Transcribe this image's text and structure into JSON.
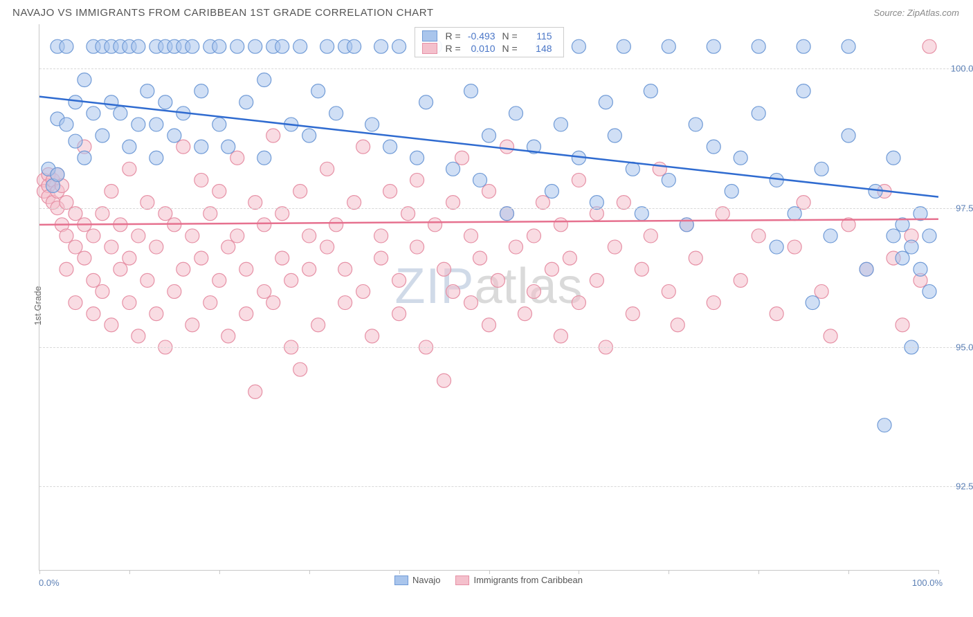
{
  "header": {
    "title": "NAVAJO VS IMMIGRANTS FROM CARIBBEAN 1ST GRADE CORRELATION CHART",
    "source_prefix": "Source: ",
    "source": "ZipAtlas.com"
  },
  "watermark": {
    "part1": "ZIP",
    "part2": "atlas"
  },
  "axes": {
    "ylabel": "1st Grade",
    "x_min_label": "0.0%",
    "x_max_label": "100.0%",
    "x_range": [
      0,
      100
    ],
    "y_range": [
      91.0,
      100.8
    ],
    "y_gridlines": [
      92.5,
      95.0,
      97.5,
      100.0
    ],
    "y_tick_labels": [
      "92.5%",
      "95.0%",
      "97.5%",
      "100.0%"
    ],
    "x_ticks": [
      0,
      10,
      20,
      30,
      40,
      50,
      60,
      70,
      80,
      90,
      100
    ],
    "grid_color": "#d8d8d8",
    "axis_color": "#c8c8c8",
    "tick_label_color": "#5b7fb5"
  },
  "series": {
    "navajo": {
      "label": "Navajo",
      "color_fill": "#a9c5ec",
      "color_stroke": "#6f9ad6",
      "line_color": "#2f6bd0",
      "marker_radius": 10,
      "fill_opacity": 0.55,
      "corr_R": "-0.493",
      "corr_N": "115",
      "regression": {
        "x1": 0,
        "y1": 99.5,
        "x2": 100,
        "y2": 97.7
      },
      "points": [
        [
          1,
          98.2
        ],
        [
          1.5,
          97.9
        ],
        [
          2,
          98.1
        ],
        [
          2,
          99.1
        ],
        [
          2,
          100.4
        ],
        [
          3,
          99.0
        ],
        [
          3,
          100.4
        ],
        [
          4,
          98.7
        ],
        [
          4,
          99.4
        ],
        [
          5,
          98.4
        ],
        [
          5,
          99.8
        ],
        [
          6,
          99.2
        ],
        [
          6,
          100.4
        ],
        [
          7,
          100.4
        ],
        [
          7,
          98.8
        ],
        [
          8,
          99.4
        ],
        [
          8,
          100.4
        ],
        [
          9,
          99.2
        ],
        [
          9,
          100.4
        ],
        [
          10,
          98.6
        ],
        [
          10,
          100.4
        ],
        [
          11,
          99.0
        ],
        [
          11,
          100.4
        ],
        [
          12,
          99.6
        ],
        [
          13,
          100.4
        ],
        [
          13,
          99.0
        ],
        [
          13,
          98.4
        ],
        [
          14,
          100.4
        ],
        [
          14,
          99.4
        ],
        [
          15,
          100.4
        ],
        [
          15,
          98.8
        ],
        [
          16,
          99.2
        ],
        [
          16,
          100.4
        ],
        [
          17,
          100.4
        ],
        [
          18,
          98.6
        ],
        [
          18,
          99.6
        ],
        [
          19,
          100.4
        ],
        [
          20,
          99.0
        ],
        [
          20,
          100.4
        ],
        [
          21,
          98.6
        ],
        [
          22,
          100.4
        ],
        [
          23,
          99.4
        ],
        [
          24,
          100.4
        ],
        [
          25,
          98.4
        ],
        [
          25,
          99.8
        ],
        [
          26,
          100.4
        ],
        [
          27,
          100.4
        ],
        [
          28,
          99.0
        ],
        [
          29,
          100.4
        ],
        [
          30,
          98.8
        ],
        [
          31,
          99.6
        ],
        [
          32,
          100.4
        ],
        [
          33,
          99.2
        ],
        [
          34,
          100.4
        ],
        [
          35,
          100.4
        ],
        [
          37,
          99.0
        ],
        [
          38,
          100.4
        ],
        [
          39,
          98.6
        ],
        [
          40,
          100.4
        ],
        [
          42,
          98.4
        ],
        [
          43,
          99.4
        ],
        [
          44,
          100.4
        ],
        [
          46,
          98.2
        ],
        [
          48,
          99.6
        ],
        [
          49,
          100.4
        ],
        [
          49,
          98.0
        ],
        [
          50,
          98.8
        ],
        [
          52,
          97.4
        ],
        [
          53,
          99.2
        ],
        [
          55,
          98.6
        ],
        [
          56,
          100.4
        ],
        [
          57,
          97.8
        ],
        [
          58,
          99.0
        ],
        [
          60,
          98.4
        ],
        [
          60,
          100.4
        ],
        [
          62,
          97.6
        ],
        [
          63,
          99.4
        ],
        [
          64,
          98.8
        ],
        [
          65,
          100.4
        ],
        [
          66,
          98.2
        ],
        [
          67,
          97.4
        ],
        [
          68,
          99.6
        ],
        [
          70,
          98.0
        ],
        [
          70,
          100.4
        ],
        [
          72,
          97.2
        ],
        [
          73,
          99.0
        ],
        [
          75,
          98.6
        ],
        [
          75,
          100.4
        ],
        [
          77,
          97.8
        ],
        [
          78,
          98.4
        ],
        [
          80,
          99.2
        ],
        [
          80,
          100.4
        ],
        [
          82,
          96.8
        ],
        [
          82,
          98.0
        ],
        [
          84,
          97.4
        ],
        [
          85,
          99.6
        ],
        [
          85,
          100.4
        ],
        [
          86,
          95.8
        ],
        [
          87,
          98.2
        ],
        [
          88,
          97.0
        ],
        [
          90,
          98.8
        ],
        [
          90,
          100.4
        ],
        [
          92,
          96.4
        ],
        [
          93,
          97.8
        ],
        [
          94,
          93.6
        ],
        [
          95,
          98.4
        ],
        [
          95,
          97.0
        ],
        [
          96,
          96.6
        ],
        [
          96,
          97.2
        ],
        [
          97,
          95.0
        ],
        [
          97,
          96.8
        ],
        [
          98,
          97.4
        ],
        [
          98,
          96.4
        ],
        [
          99,
          97.0
        ],
        [
          99,
          96.0
        ]
      ]
    },
    "caribbean": {
      "label": "Immigrants from Caribbean",
      "color_fill": "#f4c0cc",
      "color_stroke": "#e690a5",
      "line_color": "#e6718f",
      "marker_radius": 10,
      "fill_opacity": 0.55,
      "corr_R": "0.010",
      "corr_N": "148",
      "regression": {
        "x1": 0,
        "y1": 97.2,
        "x2": 100,
        "y2": 97.3
      },
      "points": [
        [
          0.5,
          98.0
        ],
        [
          0.5,
          97.8
        ],
        [
          1,
          98.1
        ],
        [
          1,
          97.9
        ],
        [
          1,
          97.7
        ],
        [
          1.5,
          98.0
        ],
        [
          1.5,
          97.6
        ],
        [
          2,
          98.1
        ],
        [
          2,
          97.5
        ],
        [
          2,
          97.8
        ],
        [
          2.5,
          97.2
        ],
        [
          2.5,
          97.9
        ],
        [
          3,
          97.0
        ],
        [
          3,
          97.6
        ],
        [
          3,
          96.4
        ],
        [
          4,
          97.4
        ],
        [
          4,
          96.8
        ],
        [
          4,
          95.8
        ],
        [
          5,
          97.2
        ],
        [
          5,
          96.6
        ],
        [
          5,
          98.6
        ],
        [
          6,
          96.2
        ],
        [
          6,
          97.0
        ],
        [
          6,
          95.6
        ],
        [
          7,
          97.4
        ],
        [
          7,
          96.0
        ],
        [
          8,
          96.8
        ],
        [
          8,
          95.4
        ],
        [
          8,
          97.8
        ],
        [
          9,
          96.4
        ],
        [
          9,
          97.2
        ],
        [
          10,
          95.8
        ],
        [
          10,
          96.6
        ],
        [
          10,
          98.2
        ],
        [
          11,
          95.2
        ],
        [
          11,
          97.0
        ],
        [
          12,
          96.2
        ],
        [
          12,
          97.6
        ],
        [
          13,
          95.6
        ],
        [
          13,
          96.8
        ],
        [
          14,
          97.4
        ],
        [
          14,
          95.0
        ],
        [
          15,
          96.0
        ],
        [
          15,
          97.2
        ],
        [
          16,
          98.6
        ],
        [
          16,
          96.4
        ],
        [
          17,
          95.4
        ],
        [
          17,
          97.0
        ],
        [
          18,
          96.6
        ],
        [
          18,
          98.0
        ],
        [
          19,
          97.4
        ],
        [
          19,
          95.8
        ],
        [
          20,
          96.2
        ],
        [
          20,
          97.8
        ],
        [
          21,
          95.2
        ],
        [
          21,
          96.8
        ],
        [
          22,
          98.4
        ],
        [
          22,
          97.0
        ],
        [
          23,
          95.6
        ],
        [
          23,
          96.4
        ],
        [
          24,
          97.6
        ],
        [
          24,
          94.2
        ],
        [
          25,
          96.0
        ],
        [
          25,
          97.2
        ],
        [
          26,
          98.8
        ],
        [
          26,
          95.8
        ],
        [
          27,
          96.6
        ],
        [
          27,
          97.4
        ],
        [
          28,
          95.0
        ],
        [
          28,
          96.2
        ],
        [
          29,
          97.8
        ],
        [
          29,
          94.6
        ],
        [
          30,
          96.4
        ],
        [
          30,
          97.0
        ],
        [
          31,
          95.4
        ],
        [
          32,
          96.8
        ],
        [
          32,
          98.2
        ],
        [
          33,
          97.2
        ],
        [
          34,
          95.8
        ],
        [
          34,
          96.4
        ],
        [
          35,
          97.6
        ],
        [
          36,
          96.0
        ],
        [
          36,
          98.6
        ],
        [
          37,
          95.2
        ],
        [
          38,
          97.0
        ],
        [
          38,
          96.6
        ],
        [
          39,
          97.8
        ],
        [
          40,
          96.2
        ],
        [
          40,
          95.6
        ],
        [
          41,
          97.4
        ],
        [
          42,
          96.8
        ],
        [
          42,
          98.0
        ],
        [
          43,
          95.0
        ],
        [
          44,
          97.2
        ],
        [
          45,
          96.4
        ],
        [
          45,
          94.4
        ],
        [
          46,
          97.6
        ],
        [
          46,
          96.0
        ],
        [
          47,
          98.4
        ],
        [
          48,
          95.8
        ],
        [
          48,
          97.0
        ],
        [
          49,
          96.6
        ],
        [
          50,
          97.8
        ],
        [
          50,
          95.4
        ],
        [
          51,
          96.2
        ],
        [
          52,
          97.4
        ],
        [
          52,
          98.6
        ],
        [
          53,
          96.8
        ],
        [
          54,
          95.6
        ],
        [
          55,
          97.0
        ],
        [
          55,
          96.0
        ],
        [
          56,
          97.6
        ],
        [
          57,
          96.4
        ],
        [
          58,
          95.2
        ],
        [
          58,
          97.2
        ],
        [
          59,
          96.6
        ],
        [
          60,
          98.0
        ],
        [
          60,
          95.8
        ],
        [
          62,
          97.4
        ],
        [
          62,
          96.2
        ],
        [
          63,
          95.0
        ],
        [
          64,
          96.8
        ],
        [
          65,
          97.6
        ],
        [
          66,
          95.6
        ],
        [
          67,
          96.4
        ],
        [
          68,
          97.0
        ],
        [
          69,
          98.2
        ],
        [
          70,
          96.0
        ],
        [
          71,
          95.4
        ],
        [
          72,
          97.2
        ],
        [
          73,
          96.6
        ],
        [
          75,
          95.8
        ],
        [
          76,
          97.4
        ],
        [
          78,
          96.2
        ],
        [
          80,
          97.0
        ],
        [
          82,
          95.6
        ],
        [
          84,
          96.8
        ],
        [
          85,
          97.6
        ],
        [
          87,
          96.0
        ],
        [
          88,
          95.2
        ],
        [
          90,
          97.2
        ],
        [
          92,
          96.4
        ],
        [
          94,
          97.8
        ],
        [
          95,
          96.6
        ],
        [
          96,
          95.4
        ],
        [
          97,
          97.0
        ],
        [
          98,
          96.2
        ],
        [
          99,
          100.4
        ]
      ]
    }
  },
  "legend_labels": {
    "R": "R =",
    "N": "N ="
  }
}
